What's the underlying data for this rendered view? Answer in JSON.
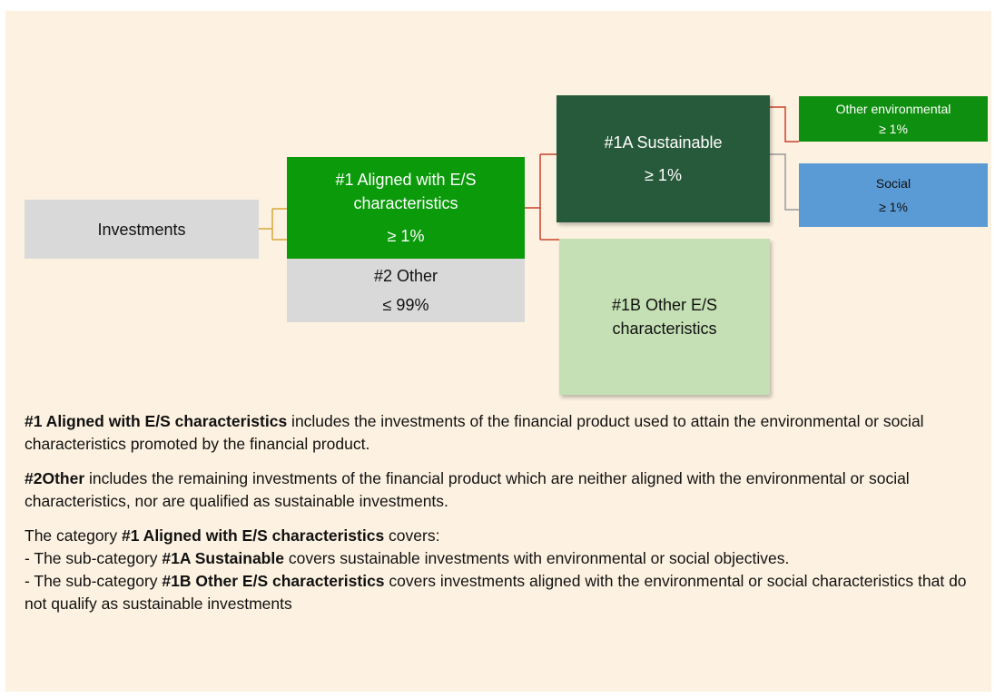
{
  "nodes": [
    {
      "label": "Investments"
    },
    {
      "label": "#1 Aligned with E/S characteristics",
      "value": "≥ 1%"
    },
    {
      "label": "#2 Other",
      "value": "≤ 99%"
    },
    {
      "label": "#1A Sustainable",
      "value": "≥ 1%"
    },
    {
      "label": "#1B Other E/S characteristics"
    },
    {
      "label": "Other environmental",
      "value": "≥ 1%"
    },
    {
      "label": "Social",
      "value": "≥ 1%"
    }
  ],
  "notes": [
    [
      {
        "bold": "#1 Aligned with E/S characteristics"
      },
      {
        "text": " includes the investments of the financial product used to attain the environmental or social characteristics promoted by the financial product."
      }
    ],
    [
      {
        "bold": "#2Other"
      },
      {
        "text": " includes the remaining investments of the financial product which are neither aligned with the environmental or social characteristics, nor are qualified as sustainable investments."
      }
    ],
    [
      {
        "text": "The category "
      },
      {
        "bold": "#1 Aligned with E/S characteristics"
      },
      {
        "text": " covers:"
      }
    ],
    [
      {
        "text": "- The sub-category "
      },
      {
        "bold": "#1A Sustainable"
      },
      {
        "text": " covers sustainable investments with environmental or social objectives."
      }
    ],
    [
      {
        "text": "- The sub-category "
      },
      {
        "bold": "#1B Other E/S characteristics"
      },
      {
        "text": " covers investments aligned with the environmental or social characteristics that do not qualify as sustainable investments"
      }
    ]
  ]
}
